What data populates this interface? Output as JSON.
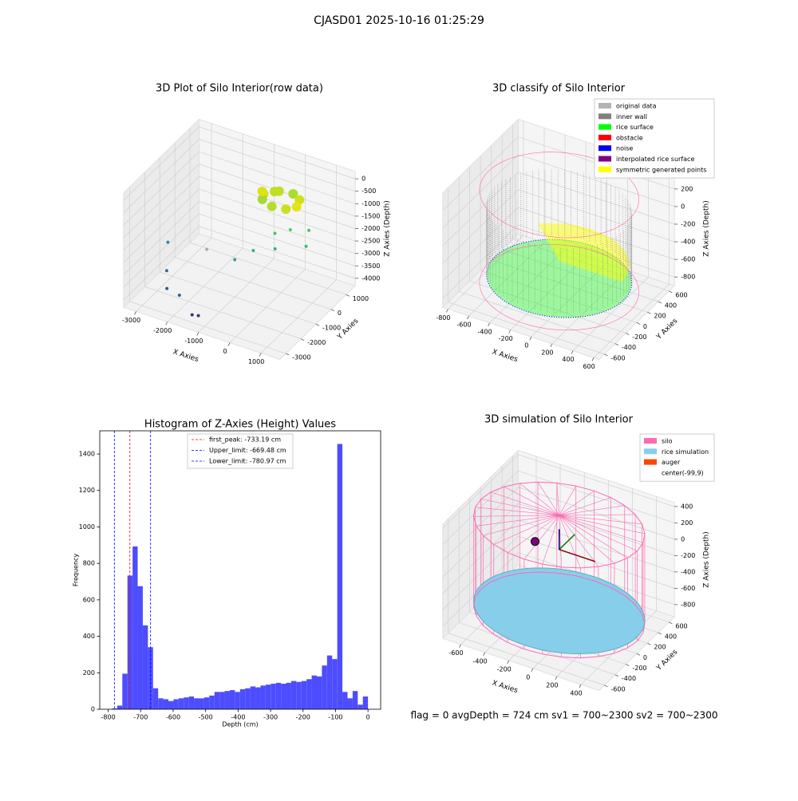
{
  "suptitle": "CJASD01 2025-10-16 01:25:29",
  "footer": "flag = 0     avgDepth = 724 cm  sv1 = 700~2300  sv2 = 700~2300",
  "chart_data": [
    {
      "type": "scatter3d",
      "title": "3D Plot of Silo Interior(row data)",
      "xlabel": "X Axies",
      "ylabel": "Y Axies",
      "zlabel": "Z Axies (Depth)",
      "xlim": [
        -3400,
        1600
      ],
      "xticks": [
        -3000,
        -2000,
        -1000,
        0,
        1000
      ],
      "ylim": [
        -3400,
        1600
      ],
      "yticks": [
        -3000,
        -2000,
        -1000,
        0,
        1000
      ],
      "zlim": [
        -4300,
        300
      ],
      "zticks": [
        0,
        -500,
        -1000,
        -1500,
        -2000,
        -2500,
        -3000,
        -3500,
        -4000
      ],
      "x": [
        -2900,
        -2600,
        -2400,
        -2000,
        -1400,
        -1200,
        -1800,
        -1000,
        -600,
        -200,
        200,
        600,
        800,
        0,
        -700,
        -400,
        0,
        300,
        400,
        200,
        -200,
        -600,
        -800,
        -500
      ],
      "y": [
        -1500,
        -2200,
        -2600,
        -2600,
        -3000,
        -3000,
        -1200,
        -1000,
        -600,
        0,
        200,
        600,
        0,
        -400,
        300,
        700,
        800,
        600,
        200,
        -100,
        -200,
        0,
        400,
        600
      ],
      "z": [
        -2600,
        -3200,
        -3600,
        -3700,
        -4000,
        -3950,
        -2600,
        -2800,
        -2500,
        -2000,
        -1800,
        -1900,
        -2100,
        -2300,
        -800,
        -800,
        -800,
        -800,
        -800,
        -800,
        -800,
        -800,
        -800,
        -800
      ],
      "colors": [
        "#3a87b5",
        "#2e6f8e",
        "#2c5d8c",
        "#33638d",
        "#482878",
        "#472c7a",
        "#9ab5b0",
        "#3e9a9a",
        "#35b779",
        "#4ac16d",
        "#55c667",
        "#4ec36b",
        "#3fbc73",
        "#31b57b",
        "#d8e219",
        "#c2df23",
        "#addc30",
        "#d0e11c",
        "#e5e419",
        "#c8e020",
        "#b5de2b",
        "#a2da37",
        "#dde318",
        "#bddf26"
      ]
    },
    {
      "type": "scatter3d",
      "title": "3D classify of Silo Interior",
      "xlabel": "X Axies",
      "ylabel": "Y Axies",
      "zlabel": "Z Axies (Depth)",
      "xlim": [
        -850,
        650
      ],
      "xticks": [
        -800,
        -600,
        -400,
        -200,
        0,
        200,
        400,
        600
      ],
      "ylim": [
        -700,
        700
      ],
      "yticks": [
        -600,
        -400,
        -200,
        0,
        200,
        400,
        600
      ],
      "zlim": [
        -900,
        400
      ],
      "zticks": [
        -800,
        -600,
        -400,
        -200,
        0,
        200
      ],
      "legend": [
        {
          "name": "original data",
          "color": "#b3b3b3"
        },
        {
          "name": "inner wall",
          "color": "#808080"
        },
        {
          "name": "rice surface",
          "color": "#00ff00"
        },
        {
          "name": "obstacle",
          "color": "#ff0000"
        },
        {
          "name": "noise",
          "color": "#0000ff"
        },
        {
          "name": "interpolated rice surface",
          "color": "#800080"
        },
        {
          "name": "symmetric generated points",
          "color": "#ffff00"
        }
      ]
    },
    {
      "type": "histogram",
      "title": "Histogram of Z-Axies (Height) Values",
      "xlabel": "Depth (cm)",
      "ylabel": "Frequency",
      "color": "#4d4dff",
      "xlim": [
        -826,
        39
      ],
      "xticks": [
        -800,
        -700,
        -600,
        -500,
        -400,
        -300,
        -200,
        -100,
        0
      ],
      "ylim": [
        0,
        1527
      ],
      "yticks": [
        0,
        200,
        400,
        600,
        800,
        1000,
        1200,
        1400
      ],
      "bins": [
        -788,
        -772.24,
        -756.48,
        -740.72,
        -724.96,
        -709.2,
        -693.44,
        -677.68,
        -661.92,
        -646.16,
        -630.4,
        -614.64,
        -598.88,
        -583.12,
        -567.36,
        -551.6,
        -535.84,
        -520.08,
        -504.32,
        -488.56,
        -472.8,
        -457.04,
        -441.28,
        -425.52,
        -409.76,
        -394,
        -378.24,
        -362.48,
        -346.72,
        -330.96,
        -315.2,
        -299.44,
        -283.68,
        -267.92,
        -252.16,
        -236.4,
        -220.64,
        -204.88,
        -189.12,
        -173.36,
        -157.6,
        -141.84,
        -126.08,
        -110.32,
        -94.56,
        -78.8,
        -63.04,
        -47.28,
        -31.52,
        -15.76,
        0
      ],
      "values": [
        5,
        20,
        195,
        733,
        893,
        675,
        460,
        340,
        115,
        60,
        55,
        45,
        55,
        60,
        65,
        70,
        60,
        60,
        65,
        75,
        95,
        95,
        100,
        105,
        95,
        110,
        115,
        125,
        120,
        130,
        135,
        140,
        145,
        140,
        145,
        155,
        150,
        155,
        165,
        185,
        180,
        240,
        295,
        275,
        1455,
        95,
        60,
        100,
        25,
        70
      ],
      "vlines": [
        {
          "name": "first_peak: -733.19 cm",
          "value": -733.19,
          "color": "#ff0000"
        },
        {
          "name": "Upper_limit: -669.48 cm",
          "value": -669.48,
          "color": "#0000ff"
        },
        {
          "name": "Lower_limit: -780.97 cm",
          "value": -780.97,
          "color": "#0000ff"
        }
      ]
    },
    {
      "type": "scatter3d",
      "title": "3D simulation of Silo Interior",
      "xlabel": "X Axies",
      "ylabel": "Y Axies",
      "zlabel": "Z Axies (Depth)",
      "xlim": [
        -750,
        550
      ],
      "xticks": [
        -600,
        -400,
        -200,
        0,
        200,
        400
      ],
      "ylim": [
        -700,
        700
      ],
      "yticks": [
        -600,
        -400,
        -200,
        0,
        200,
        400,
        600
      ],
      "zlim": [
        -950,
        450
      ],
      "zticks": [
        -800,
        -600,
        -400,
        -200,
        0,
        200,
        400
      ],
      "legend": [
        {
          "name": "silo",
          "color": "#ff69b4"
        },
        {
          "name": "rice simulation",
          "color": "#87ceeb"
        },
        {
          "name": "auger",
          "color": "#ff4500"
        },
        {
          "name": "center(-99,9)"
        }
      ]
    }
  ]
}
